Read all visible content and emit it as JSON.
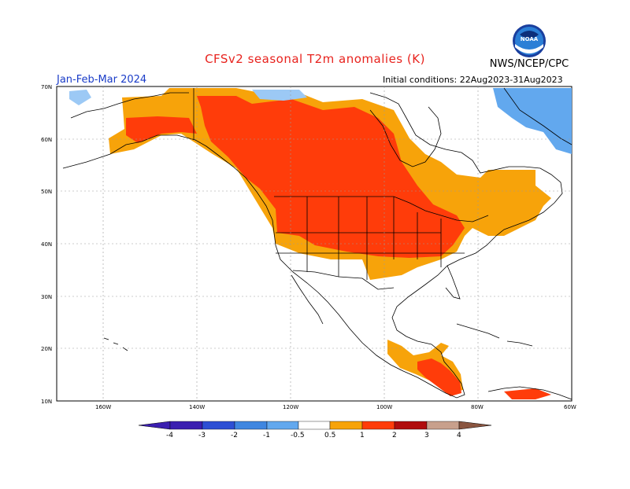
{
  "header": {
    "title": "CFSv2 seasonal T2m anomalies (K)",
    "agency": "NWS/NCEP/CPC",
    "season": "Jan-Feb-Mar 2024",
    "initial_conditions": "Initial conditions: 22Aug2023-31Aug2023",
    "logo_text": "NOAA"
  },
  "map": {
    "lat_labels": [
      "70N",
      "60N",
      "50N",
      "40N",
      "30N",
      "20N",
      "10N"
    ],
    "lon_labels": [
      "160W",
      "140W",
      "120W",
      "100W",
      "80W",
      "60W"
    ],
    "lat_range": [
      10,
      70
    ],
    "lon_range": [
      -170,
      -60
    ],
    "gridlines": true
  },
  "colorbar": {
    "labels": [
      "-4",
      "-3",
      "-2",
      "-1",
      "-0.5",
      "0.5",
      "1",
      "2",
      "3",
      "4"
    ],
    "colors": [
      "#3b1fb0",
      "#2d4fd4",
      "#3f86e0",
      "#62a8ee",
      "#9cc9f5",
      "#ffffff",
      "#f7a30a",
      "#ff3c0a",
      "#b00c0c",
      "#c8a08c",
      "#8a5540"
    ]
  },
  "colors": {
    "warm1": "#f7a30a",
    "warm2": "#ff3c0a",
    "cool1": "#62a8ee",
    "cool2": "#9cc9f5"
  }
}
